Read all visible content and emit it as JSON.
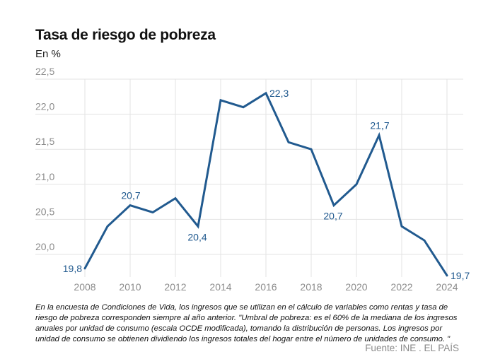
{
  "chart_data": {
    "type": "line",
    "title": "Tasa de riesgo de pobreza",
    "subtitle": "En %",
    "xlabel": "",
    "ylabel": "",
    "x": [
      2008,
      2009,
      2010,
      2011,
      2012,
      2013,
      2014,
      2015,
      2016,
      2017,
      2018,
      2019,
      2020,
      2021,
      2022,
      2023,
      2024
    ],
    "series": [
      {
        "name": "Tasa de riesgo de pobreza",
        "values": [
          19.8,
          20.4,
          20.7,
          20.6,
          20.8,
          20.4,
          22.2,
          22.1,
          22.3,
          21.6,
          21.5,
          20.7,
          21.0,
          21.7,
          20.4,
          20.2,
          19.7
        ],
        "color": "#215a8f"
      }
    ],
    "ylim": [
      19.7,
      22.5
    ],
    "yticks": [
      20.0,
      20.5,
      21.0,
      21.5,
      22.0,
      22.5
    ],
    "ytick_labels": [
      "20,0",
      "20,5",
      "21,0",
      "21,5",
      "22,0",
      "22,5"
    ],
    "xticks": [
      2008,
      2010,
      2012,
      2014,
      2016,
      2018,
      2020,
      2022,
      2024
    ],
    "xtick_labels": [
      "2008",
      "2010",
      "2012",
      "2014",
      "2016",
      "2018",
      "2020",
      "2022",
      "2024"
    ],
    "annotations": [
      {
        "x": 2008,
        "label": "19,8",
        "position": "left"
      },
      {
        "x": 2010,
        "label": "20,7",
        "position": "above"
      },
      {
        "x": 2013,
        "label": "20,4",
        "position": "below"
      },
      {
        "x": 2016,
        "label": "22,3",
        "position": "right"
      },
      {
        "x": 2019,
        "label": "20,7",
        "position": "below"
      },
      {
        "x": 2021,
        "label": "21,7",
        "position": "above"
      },
      {
        "x": 2024,
        "label": "19,7",
        "position": "right"
      }
    ],
    "grid": true
  },
  "note": "En la encuesta de Condiciones de Vida, los ingresos que se utilizan en el cálculo de variables como rentas y tasa de riesgo de pobreza corresponden siempre al año anterior. \"Umbral de pobreza: es el 60% de la mediana de los ingresos anuales por unidad de consumo (escala OCDE modificada), tomando la distribución de personas. Los ingresos por unidad de consumo se obtienen dividiendo los ingresos totales del hogar entre el número de unidades de consumo. \"",
  "source": "Fuente: INE . EL PAÍS"
}
